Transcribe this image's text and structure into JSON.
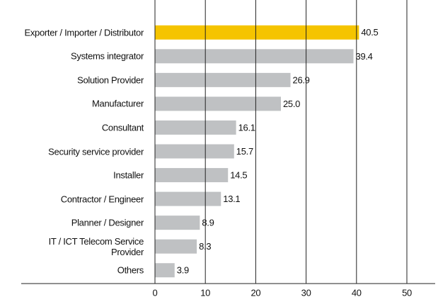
{
  "chart_data": {
    "type": "bar",
    "orientation": "horizontal",
    "categories": [
      "Exporter / Importer / Distributor",
      "Systems integrator",
      "Solution Provider",
      "Manufacturer",
      "Consultant",
      "Security service provider",
      "Installer",
      "Contractor / Engineer",
      "Planner / Designer",
      "IT / ICT Telecom Service Provider",
      "Others"
    ],
    "values": [
      40.5,
      39.4,
      26.9,
      25.0,
      16.1,
      15.7,
      14.5,
      13.1,
      8.9,
      8.3,
      3.9
    ],
    "value_labels": [
      "40.5",
      "39.4",
      "26.9",
      "25.0",
      "16.1",
      "15.7",
      "14.5",
      "13.1",
      "8.9",
      "8.3",
      "3.9"
    ],
    "colors": [
      "#f5c400",
      "#bfc1c3",
      "#bfc1c3",
      "#bfc1c3",
      "#bfc1c3",
      "#bfc1c3",
      "#bfc1c3",
      "#bfc1c3",
      "#bfc1c3",
      "#bfc1c3",
      "#bfc1c3"
    ],
    "xlim": [
      0,
      55
    ],
    "xticks": [
      0,
      10,
      20,
      30,
      40,
      50
    ],
    "grid": true
  }
}
